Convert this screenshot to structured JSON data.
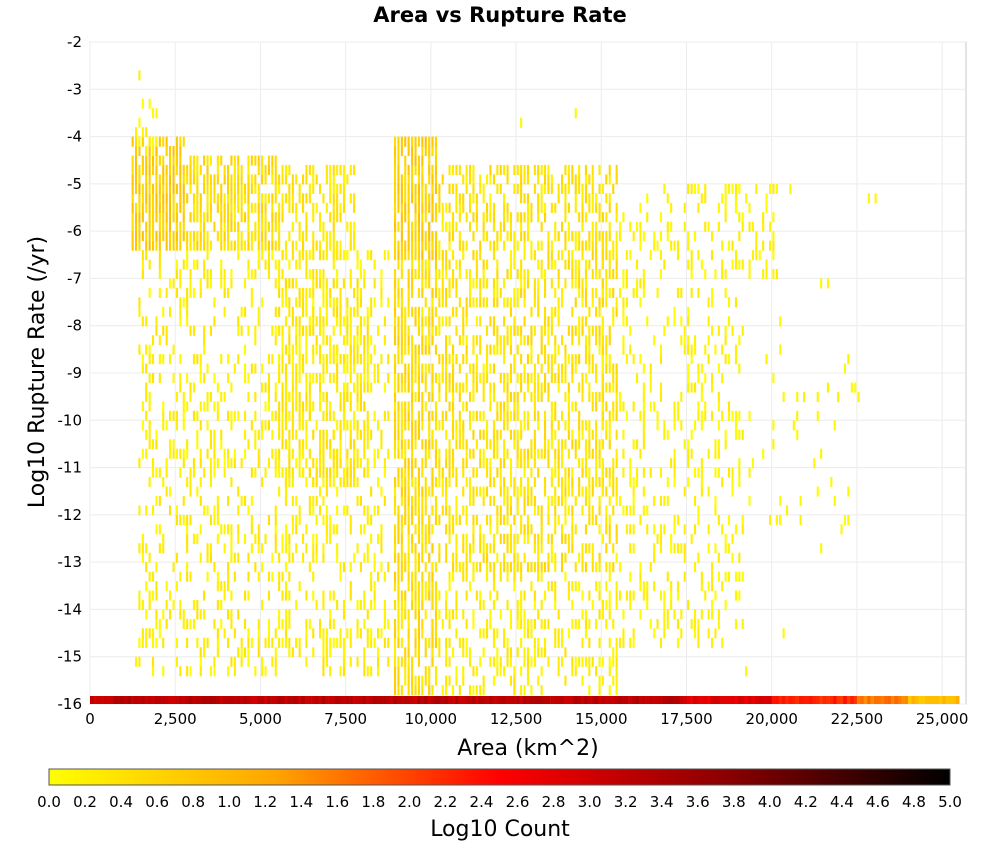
{
  "chart_data": {
    "type": "heatmap",
    "title": "Area vs Rupture Rate",
    "xlabel": "Area (km^2)",
    "ylabel": "Log10 Rupture Rate (/yr)",
    "xlim": [
      0,
      25700
    ],
    "ylim": [
      -16,
      -2
    ],
    "x_ticks": [
      0,
      2500,
      5000,
      7500,
      10000,
      12500,
      15000,
      17500,
      20000,
      22500,
      25000
    ],
    "x_tick_labels": [
      "0",
      "2,500",
      "5,000",
      "7,500",
      "10,000",
      "12,500",
      "15,000",
      "17,500",
      "20,000",
      "22,500",
      "25,000"
    ],
    "y_ticks": [
      -2,
      -3,
      -4,
      -5,
      -6,
      -7,
      -8,
      -9,
      -10,
      -11,
      -12,
      -13,
      -14,
      -15,
      -16
    ],
    "y_tick_labels": [
      "-2",
      "-3",
      "-4",
      "-5",
      "-6",
      "-7",
      "-8",
      "-9",
      "-10",
      "-11",
      "-12",
      "-13",
      "-14",
      "-15",
      "-16"
    ],
    "grid": true,
    "cell_width": 100,
    "cell_height": 0.2,
    "colorbar": {
      "label": "Log10 Count",
      "range": [
        0,
        5
      ],
      "ticks": [
        "0.0",
        "0.2",
        "0.4",
        "0.6",
        "0.8",
        "1.0",
        "1.2",
        "1.4",
        "1.6",
        "1.8",
        "2.0",
        "2.2",
        "2.4",
        "2.6",
        "2.8",
        "3.0",
        "3.2",
        "3.4",
        "3.6",
        "3.8",
        "4.0",
        "4.2",
        "4.4",
        "4.6",
        "4.8",
        "5.0"
      ],
      "colors": [
        "#ffff00",
        "#ffa500",
        "#ff0000",
        "#8b0000",
        "#000000"
      ]
    },
    "bottom_row": {
      "y": -16,
      "segments": [
        {
          "x0": 0,
          "x1": 9000,
          "value": 3.2
        },
        {
          "x0": 9000,
          "x1": 17500,
          "value": 3.2
        },
        {
          "x0": 17500,
          "x1": 20000,
          "value": 2.8
        },
        {
          "x0": 20000,
          "x1": 22500,
          "value": 2.2
        },
        {
          "x0": 22500,
          "x1": 24000,
          "value": 1.6
        },
        {
          "x0": 24000,
          "x1": 25500,
          "value": 0.9
        }
      ]
    },
    "regions": [
      {
        "x0": 1200,
        "x1": 2800,
        "y0": -6.4,
        "y1": -4.0,
        "density": 0.85,
        "vmin": 0.4,
        "vmax": 0.9
      },
      {
        "x0": 2800,
        "x1": 5500,
        "y0": -6.4,
        "y1": -4.4,
        "density": 0.7,
        "vmin": 0.2,
        "vmax": 0.7
      },
      {
        "x0": 5500,
        "x1": 7800,
        "y0": -6.6,
        "y1": -4.6,
        "density": 0.55,
        "vmin": 0.1,
        "vmax": 0.5
      },
      {
        "x0": 1200,
        "x1": 2000,
        "y0": -4.4,
        "y1": -3.2,
        "density": 0.35,
        "vmin": 0.0,
        "vmax": 0.3
      },
      {
        "x0": 1400,
        "x1": 8800,
        "y0": -15.5,
        "y1": -6.4,
        "density": 0.28,
        "vmin": 0.0,
        "vmax": 0.4
      },
      {
        "x0": 5500,
        "x1": 8200,
        "y0": -11.5,
        "y1": -7.0,
        "density": 0.5,
        "vmin": 0.1,
        "vmax": 0.5
      },
      {
        "x0": 8900,
        "x1": 10200,
        "y0": -6.6,
        "y1": -4.0,
        "density": 0.9,
        "vmin": 0.4,
        "vmax": 0.9
      },
      {
        "x0": 8900,
        "x1": 10200,
        "y0": -15.8,
        "y1": -6.6,
        "density": 0.7,
        "vmin": 0.2,
        "vmax": 0.7
      },
      {
        "x0": 10200,
        "x1": 15500,
        "y0": -13.2,
        "y1": -4.6,
        "density": 0.55,
        "vmin": 0.1,
        "vmax": 0.6
      },
      {
        "x0": 10200,
        "x1": 15500,
        "y0": -15.8,
        "y1": -13.2,
        "density": 0.35,
        "vmin": 0.0,
        "vmax": 0.4
      },
      {
        "x0": 15500,
        "x1": 19200,
        "y0": -14.8,
        "y1": -5.0,
        "density": 0.25,
        "vmin": 0.0,
        "vmax": 0.3
      },
      {
        "x0": 18800,
        "x1": 20200,
        "y0": -7.0,
        "y1": -5.0,
        "density": 0.3,
        "vmin": 0.0,
        "vmax": 0.3
      },
      {
        "x0": 19200,
        "x1": 22500,
        "y0": -12.5,
        "y1": -8.5,
        "density": 0.05,
        "vmin": 0.0,
        "vmax": 0.2
      }
    ],
    "points": [
      {
        "x": 1400,
        "y": -2.8,
        "value": 0.2
      },
      {
        "x": 14200,
        "y": -3.6,
        "value": 0.1
      },
      {
        "x": 12600,
        "y": -3.8,
        "value": 0.1
      },
      {
        "x": 20500,
        "y": -5.2,
        "value": 0.1
      },
      {
        "x": 22800,
        "y": -5.4,
        "value": 0.1
      },
      {
        "x": 23000,
        "y": -5.4,
        "value": 0.1
      },
      {
        "x": 21400,
        "y": -7.2,
        "value": 0.1
      },
      {
        "x": 21600,
        "y": -7.2,
        "value": 0.1
      },
      {
        "x": 22100,
        "y": -9.0,
        "value": 0.1
      },
      {
        "x": 22300,
        "y": -9.4,
        "value": 0.1
      },
      {
        "x": 22500,
        "y": -9.6,
        "value": 0.1
      },
      {
        "x": 21300,
        "y": -10.0,
        "value": 0.1
      },
      {
        "x": 21200,
        "y": -11.0,
        "value": 0.1
      },
      {
        "x": 21700,
        "y": -11.4,
        "value": 0.1
      },
      {
        "x": 22200,
        "y": -11.6,
        "value": 0.1
      },
      {
        "x": 21400,
        "y": -12.8,
        "value": 0.1
      },
      {
        "x": 20200,
        "y": -8.0,
        "value": 0.1
      },
      {
        "x": 20200,
        "y": -8.6,
        "value": 0.1
      },
      {
        "x": 20300,
        "y": -9.6,
        "value": 0.1
      },
      {
        "x": 20700,
        "y": -10.4,
        "value": 0.1
      },
      {
        "x": 20800,
        "y": -11.8,
        "value": 0.1
      },
      {
        "x": 20300,
        "y": -14.6,
        "value": 0.1
      },
      {
        "x": 19200,
        "y": -15.4,
        "value": 0.1
      },
      {
        "x": 1300,
        "y": -15.2,
        "value": 0.1
      }
    ],
    "seed": 20240101
  }
}
